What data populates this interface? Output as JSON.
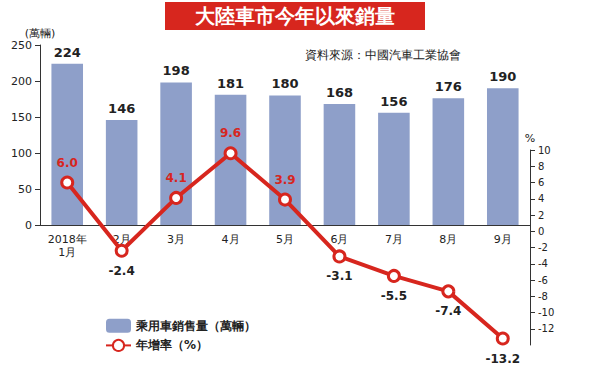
{
  "chart_data": {
    "type": "bar",
    "title": "大陸車市今年以來銷量",
    "subtitle": "資料來源：中國汽車工業協會",
    "categories": [
      "2018年\n1月",
      "2月",
      "3月",
      "4月",
      "5月",
      "6月",
      "7月",
      "8月",
      "9月"
    ],
    "series": [
      {
        "name": "乘用車銷售量（萬輛）",
        "type": "bar",
        "color": "#8e9fc9",
        "values": [
          224,
          146,
          198,
          181,
          180,
          168,
          156,
          176,
          190
        ]
      },
      {
        "name": "年增率（%）",
        "type": "line",
        "axis": "y2",
        "color": "#d7261e",
        "marker": "circle",
        "values": [
          6.0,
          -2.4,
          4.1,
          9.6,
          3.9,
          -3.1,
          -5.5,
          -7.4,
          -13.2
        ],
        "value_labels": [
          "6.0",
          "-2.4",
          "4.1",
          "9.6",
          "3.9",
          "-3.1",
          "-5.5",
          "-7.4",
          "-13.2"
        ]
      }
    ],
    "y_label": "(萬輛)",
    "y2_label": "%",
    "ylim": [
      0,
      250
    ],
    "yticks": [
      0,
      50,
      100,
      150,
      200,
      250
    ],
    "y2lim": [
      -14,
      10
    ],
    "y2ticks": [
      -12,
      -10,
      -8,
      -6,
      -4,
      -2,
      0,
      2,
      4,
      6,
      8,
      10
    ],
    "data_labels": true,
    "grid": false,
    "legend": "bottom-left"
  }
}
